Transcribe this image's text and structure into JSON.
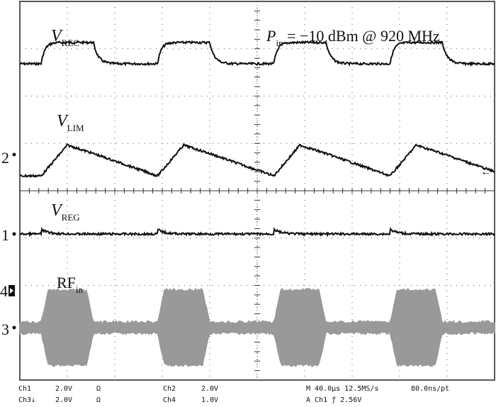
{
  "chart_data": {
    "type": "line",
    "title": "",
    "annotation": {
      "main": "P",
      "sub": "in",
      "rest": " = −10 dBm @ 920 MHz"
    },
    "grid": true,
    "grid_style": "dotted",
    "time_axis": {
      "divisions": 10,
      "per_division_us": 40,
      "range_us": [
        0,
        400
      ]
    },
    "burst_period_us": 98,
    "burst_on_us": 44,
    "burst_starts_us": [
      18,
      116,
      214,
      312
    ],
    "series": [
      {
        "name_main": "V",
        "name_sub": "REC",
        "channel": "",
        "shape": "square-like",
        "low_div": 0.6,
        "high_div": 1.05,
        "color": "#111111"
      },
      {
        "name_main": "V",
        "name_sub": "LIM",
        "channel": "2",
        "shape": "triangle-like",
        "low_div": -0.45,
        "high_div": 0.2,
        "color": "#111111"
      },
      {
        "name_main": "V",
        "name_sub": "REG",
        "channel": "1",
        "shape": "flat-with-small-steps",
        "low_div": 0.0,
        "high_div": 0.1,
        "color": "#111111"
      },
      {
        "name_main": "RF",
        "name_sub": "in",
        "channel": "3",
        "shape": "rf-burst-envelope",
        "low_div": -0.12,
        "high_div": 0.12,
        "burst_amp_div": 0.8,
        "color": "#999999"
      }
    ],
    "channel_markers": [
      "2",
      "1",
      "4",
      "3"
    ],
    "trigger_marker": "←"
  },
  "status": {
    "row1": {
      "ch1": "Ch1",
      "ch1_volts": "2.0V",
      "ch1_imp": "Ω",
      "ch2": "Ch2",
      "ch2_volts": "2.0V",
      "timebase": "M 40.0µs 12.5MS/s",
      "resolution": "80.0ns/pt"
    },
    "row2": {
      "ch3": "Ch3↓",
      "ch3_volts": "2.0V",
      "ch3_imp": "Ω",
      "ch4": "Ch4",
      "ch4_volts": "1.0V",
      "trigger": "A Ch1 ƒ 2.56V"
    }
  }
}
